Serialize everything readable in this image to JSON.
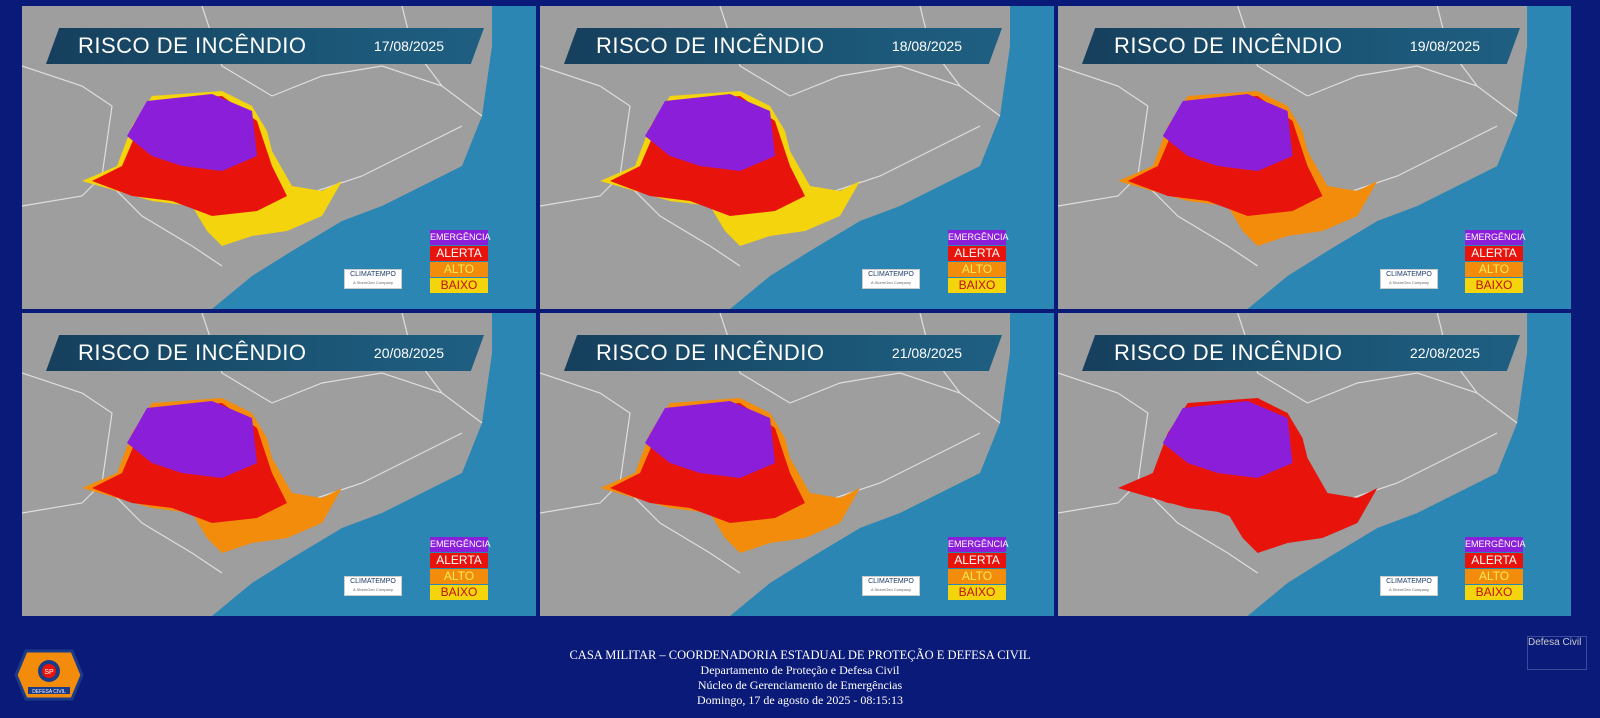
{
  "panels": [
    {
      "title": "RISCO DE INCÊNDIO",
      "date": "17/08/2025"
    },
    {
      "title": "RISCO DE INCÊNDIO",
      "date": "18/08/2025"
    },
    {
      "title": "RISCO DE INCÊNDIO",
      "date": "19/08/2025"
    },
    {
      "title": "RISCO DE INCÊNDIO",
      "date": "20/08/2025"
    },
    {
      "title": "RISCO DE INCÊNDIO",
      "date": "21/08/2025"
    },
    {
      "title": "RISCO DE INCÊNDIO",
      "date": "22/08/2025"
    }
  ],
  "legend": {
    "emergencia": "EMERGÊNCIA",
    "alerta": "ALERTA",
    "alto": "ALTO",
    "baixo": "BAIXO"
  },
  "brand": {
    "name": "CLIMATEMPO",
    "tagline": "A StormGeo Company"
  },
  "colors": {
    "emergencia": "#8b1fd9",
    "alerta": "#e8140c",
    "alto": "#f28c0a",
    "baixo": "#f4d40c",
    "ocean": "#2b86b3",
    "land": "#9e9e9e",
    "background": "#0a1a78"
  },
  "footer": {
    "line1": "CASA MILITAR – COORDENADORIA ESTADUAL DE PROTEÇÃO E DEFESA CIVIL",
    "line2": "Departamento de Proteção e Defesa Civil",
    "line3": "Núcleo de Gerenciamento de Emergências",
    "line4": "Domingo, 17 de agosto de 2025 - 08:15:13"
  },
  "logo_left": {
    "text": "DEFESA CIVIL",
    "sub": "SP"
  },
  "logo_right": {
    "alt": "Defesa Civil"
  }
}
